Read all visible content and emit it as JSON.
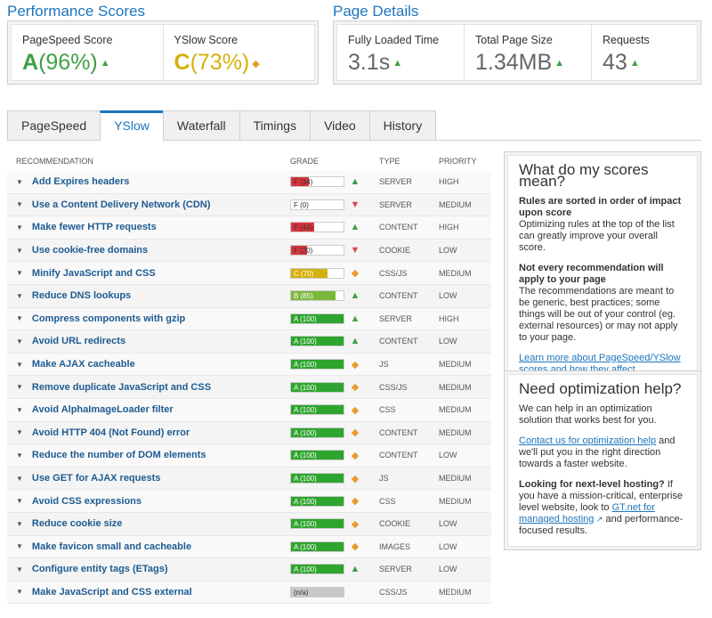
{
  "performance": {
    "title": "Performance Scores",
    "pagespeed": {
      "label": "PageSpeed Score",
      "grade": "A",
      "percent": "(96%)",
      "trend": "up"
    },
    "yslow": {
      "label": "YSlow Score",
      "grade": "C",
      "percent": "(73%)",
      "trend": "same"
    }
  },
  "details": {
    "title": "Page Details",
    "load_time": {
      "label": "Fully Loaded Time",
      "value": "3.1s"
    },
    "page_size": {
      "label": "Total Page Size",
      "value": "1.34MB"
    },
    "requests": {
      "label": "Requests",
      "value": "43"
    }
  },
  "tabs": [
    "PageSpeed",
    "YSlow",
    "Waterfall",
    "Timings",
    "Video",
    "History"
  ],
  "active_tab": "YSlow",
  "table": {
    "headers": {
      "recommendation": "RECOMMENDATION",
      "grade": "GRADE",
      "type": "TYPE",
      "priority": "PRIORITY"
    },
    "rows": [
      {
        "name": "Add Expires headers",
        "grade": "F (34)",
        "score": 34,
        "color": "#d9343c",
        "trend": "up",
        "type": "SERVER",
        "priority": "HIGH"
      },
      {
        "name": "Use a Content Delivery Network (CDN)",
        "grade": "F (0)",
        "score": 0,
        "color": "#d9343c",
        "trend": "down",
        "type": "SERVER",
        "priority": "MEDIUM"
      },
      {
        "name": "Make fewer HTTP requests",
        "grade": "F (44)",
        "score": 44,
        "color": "#d9343c",
        "trend": "up",
        "type": "CONTENT",
        "priority": "HIGH"
      },
      {
        "name": "Use cookie-free domains",
        "grade": "F (30)",
        "score": 30,
        "color": "#d9343c",
        "trend": "down",
        "type": "COOKIE",
        "priority": "LOW"
      },
      {
        "name": "Minify JavaScript and CSS",
        "grade": "C (70)",
        "score": 70,
        "color": "#d4b10a",
        "trend": "same",
        "type": "CSS/JS",
        "priority": "MEDIUM"
      },
      {
        "name": "Reduce DNS lookups",
        "grade": "B (85)",
        "score": 85,
        "color": "#7ab83a",
        "trend": "up",
        "type": "CONTENT",
        "priority": "LOW"
      },
      {
        "name": "Compress components with gzip",
        "grade": "A (100)",
        "score": 100,
        "color": "#2ea52e",
        "trend": "up",
        "type": "SERVER",
        "priority": "HIGH"
      },
      {
        "name": "Avoid URL redirects",
        "grade": "A (100)",
        "score": 100,
        "color": "#2ea52e",
        "trend": "up",
        "type": "CONTENT",
        "priority": "LOW"
      },
      {
        "name": "Make AJAX cacheable",
        "grade": "A (100)",
        "score": 100,
        "color": "#2ea52e",
        "trend": "same",
        "type": "JS",
        "priority": "MEDIUM"
      },
      {
        "name": "Remove duplicate JavaScript and CSS",
        "grade": "A (100)",
        "score": 100,
        "color": "#2ea52e",
        "trend": "same",
        "type": "CSS/JS",
        "priority": "MEDIUM"
      },
      {
        "name": "Avoid AlphaImageLoader filter",
        "grade": "A (100)",
        "score": 100,
        "color": "#2ea52e",
        "trend": "same",
        "type": "CSS",
        "priority": "MEDIUM"
      },
      {
        "name": "Avoid HTTP 404 (Not Found) error",
        "grade": "A (100)",
        "score": 100,
        "color": "#2ea52e",
        "trend": "same",
        "type": "CONTENT",
        "priority": "MEDIUM"
      },
      {
        "name": "Reduce the number of DOM elements",
        "grade": "A (100)",
        "score": 100,
        "color": "#2ea52e",
        "trend": "same",
        "type": "CONTENT",
        "priority": "LOW"
      },
      {
        "name": "Use GET for AJAX requests",
        "grade": "A (100)",
        "score": 100,
        "color": "#2ea52e",
        "trend": "same",
        "type": "JS",
        "priority": "MEDIUM"
      },
      {
        "name": "Avoid CSS expressions",
        "grade": "A (100)",
        "score": 100,
        "color": "#2ea52e",
        "trend": "same",
        "type": "CSS",
        "priority": "MEDIUM"
      },
      {
        "name": "Reduce cookie size",
        "grade": "A (100)",
        "score": 100,
        "color": "#2ea52e",
        "trend": "same",
        "type": "COOKIE",
        "priority": "LOW"
      },
      {
        "name": "Make favicon small and cacheable",
        "grade": "A (100)",
        "score": 100,
        "color": "#2ea52e",
        "trend": "same",
        "type": "IMAGES",
        "priority": "LOW"
      },
      {
        "name": "Configure entity tags (ETags)",
        "grade": "A (100)",
        "score": 100,
        "color": "#2ea52e",
        "trend": "up",
        "type": "SERVER",
        "priority": "LOW"
      },
      {
        "name": "Make JavaScript and CSS external",
        "grade": "(n/a)",
        "score": 100,
        "color": "#c8c8c8",
        "trend": "none",
        "type": "CSS/JS",
        "priority": "MEDIUM"
      }
    ]
  },
  "scores_box": {
    "title": "What do my scores mean?",
    "p1_bold": "Rules are sorted in order of impact upon score",
    "p1_text": "Optimizing rules at the top of the list can greatly improve your overall score.",
    "p2_bold": "Not every recommendation will apply to your page",
    "p2_text": "The recommendations are meant to be generic, best practices; some things will be out of your control (eg. external resources) or may not apply to your page.",
    "link": "Learn more about PageSpeed/YSlow scores and how they affect performance."
  },
  "help_box": {
    "title": "Need optimization help?",
    "p1": "We can help in an optimization solution that works best for you.",
    "contact_link": "Contact us for optimization help",
    "contact_rest": " and we'll put you in the right direction towards a faster website.",
    "hosting_bold": "Looking for next-level hosting?",
    "hosting_text": " If you have a mission-critical, enterprise level website, look to ",
    "hosting_link": "GT.net for managed hosting",
    "hosting_end": " and performance-focused results."
  },
  "colors": {
    "accent": "#1d75bd",
    "grade_a_green": "#3fa047",
    "grade_c_yellow": "#d4b10a",
    "up": "#3fa047",
    "same": "#e99b2d",
    "down": "#d9455c"
  }
}
